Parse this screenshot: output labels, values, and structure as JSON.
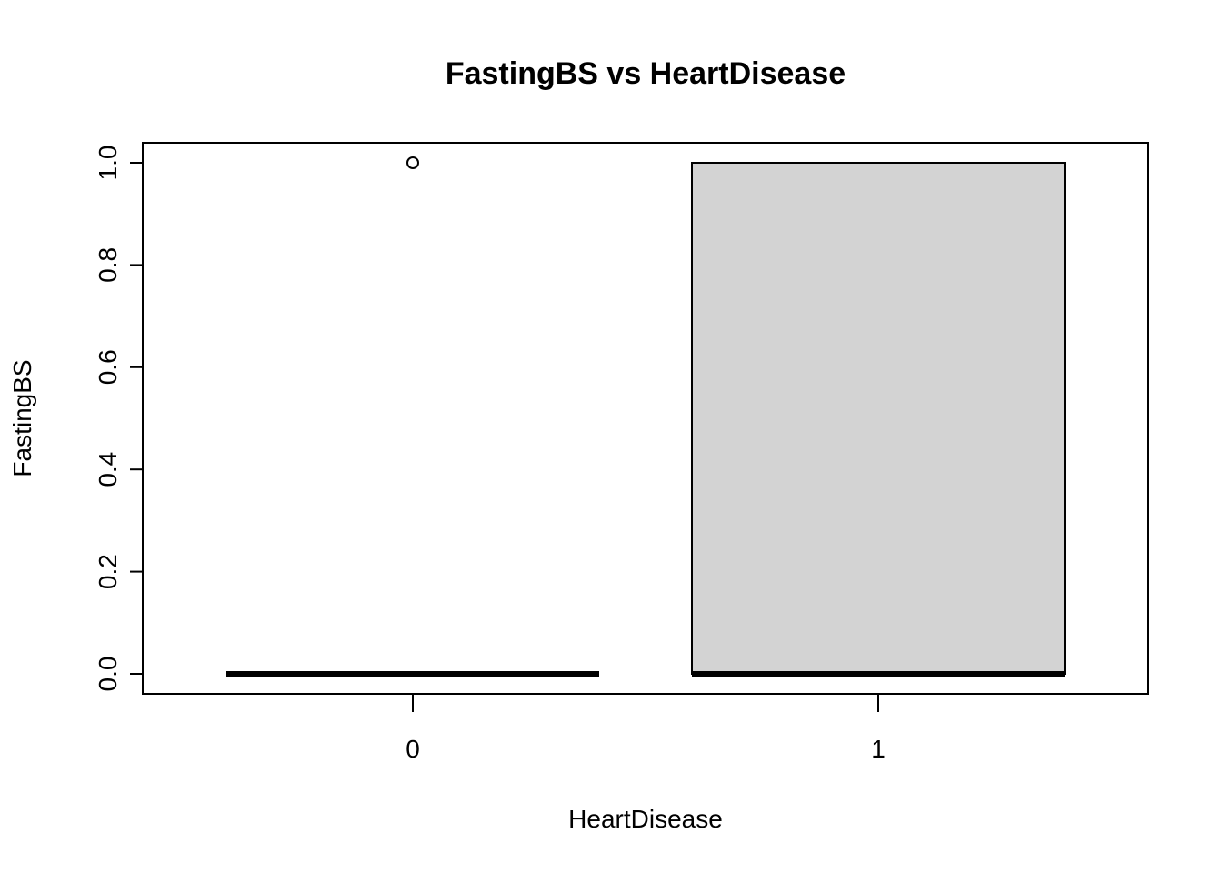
{
  "chart_data": {
    "type": "boxplot",
    "title": "FastingBS vs HeartDisease",
    "xlabel": "HeartDisease",
    "ylabel": "FastingBS",
    "categories": [
      "0",
      "1"
    ],
    "ylim": [
      -0.04,
      1.04
    ],
    "y_ticks": [
      "0.0",
      "0.2",
      "0.4",
      "0.6",
      "0.8",
      "1.0"
    ],
    "y_tick_values": [
      0,
      0.2,
      0.4,
      0.6,
      0.8,
      1.0
    ],
    "boxes": [
      {
        "category": "0",
        "min": 0,
        "q1": 0,
        "median": 0,
        "q3": 0,
        "max": 0,
        "outliers": [
          1
        ]
      },
      {
        "category": "1",
        "min": 0,
        "q1": 0,
        "median": 0,
        "q3": 1,
        "max": 1,
        "outliers": []
      }
    ],
    "box_fill": "#d3d3d3",
    "grid": false
  }
}
